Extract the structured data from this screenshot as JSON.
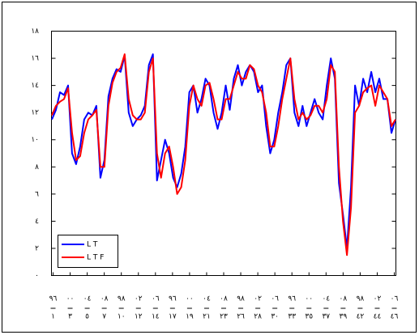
{
  "chart_data": {
    "type": "line",
    "series": [
      {
        "name": "L T",
        "color": "#0000ff",
        "values": [
          11.5,
          12.2,
          13.5,
          13.3,
          14.0,
          9.0,
          8.2,
          9.5,
          11.5,
          12.0,
          11.8,
          12.5,
          7.2,
          8.5,
          13.2,
          14.5,
          15.2,
          15.0,
          16.2,
          12.0,
          11.0,
          11.5,
          11.8,
          12.5,
          15.5,
          16.3,
          7.0,
          8.5,
          10.0,
          9.0,
          7.2,
          6.5,
          7.5,
          9.5,
          13.5,
          14.0,
          12.0,
          13.0,
          14.5,
          14.0,
          12.0,
          10.8,
          12.0,
          14.0,
          12.2,
          14.5,
          15.5,
          14.0,
          15.0,
          15.5,
          15.0,
          13.5,
          14.0,
          11.0,
          9.0,
          10.0,
          12.0,
          13.5,
          15.5,
          16.0,
          12.0,
          11.0,
          12.5,
          11.0,
          12.0,
          13.0,
          12.0,
          11.5,
          14.0,
          16.0,
          14.5,
          6.8,
          4.5,
          2.0,
          6.5,
          14.0,
          12.5,
          14.5,
          13.5,
          15.0,
          13.5,
          14.5,
          13.0,
          13.0,
          10.5,
          11.5
        ]
      },
      {
        "name": "L T F",
        "color": "#ff0000",
        "values": [
          11.8,
          12.5,
          12.8,
          13.0,
          13.8,
          10.5,
          8.5,
          8.8,
          10.5,
          11.5,
          11.8,
          12.2,
          8.0,
          8.0,
          12.5,
          14.2,
          15.0,
          15.3,
          16.3,
          13.0,
          11.8,
          11.5,
          11.5,
          12.0,
          15.0,
          16.0,
          9.0,
          7.2,
          9.0,
          9.5,
          8.0,
          6.0,
          6.5,
          8.5,
          12.5,
          14.0,
          13.0,
          12.5,
          14.0,
          14.2,
          13.0,
          11.5,
          11.5,
          13.0,
          13.0,
          14.0,
          15.0,
          14.5,
          14.5,
          15.5,
          15.2,
          14.0,
          13.5,
          12.0,
          9.5,
          9.5,
          11.0,
          13.0,
          14.5,
          16.0,
          13.0,
          11.5,
          12.0,
          11.5,
          11.8,
          12.5,
          12.5,
          12.0,
          13.0,
          15.5,
          15.0,
          8.0,
          4.0,
          1.5,
          5.0,
          12.0,
          12.5,
          13.5,
          13.8,
          14.0,
          12.5,
          14.0,
          13.5,
          13.0,
          11.0,
          11.5
        ]
      }
    ],
    "ylim": [
      0,
      18
    ],
    "yticks": [
      {
        "value": 0,
        "label": "٠"
      },
      {
        "value": 2,
        "label": "٢"
      },
      {
        "value": 4,
        "label": "٤"
      },
      {
        "value": 6,
        "label": "٦"
      },
      {
        "value": 8,
        "label": "٨"
      },
      {
        "value": 10,
        "label": "١٠"
      },
      {
        "value": 12,
        "label": "١٢"
      },
      {
        "value": 14,
        "label": "١٤"
      },
      {
        "value": 16,
        "label": "١٦"
      },
      {
        "value": 18,
        "label": "١٨"
      }
    ],
    "x_tick_labels_top": [
      "٩٦",
      "٠٠",
      "٠٤",
      "٠٨",
      "٩٨",
      "٠٢",
      "٠٦",
      "٩٦",
      "٠٠",
      "٠٤",
      "٠٨",
      "٩٨",
      "٠٢",
      "٠٦",
      "٩٦",
      "٠٠",
      "٠٤",
      "٠٨",
      "٩٨",
      "٠٢",
      "٠٦"
    ],
    "x_tick_labels_bottom": [
      "١",
      "٣",
      "٥",
      "٧",
      "١٠",
      "١٢",
      "١٤",
      "١٧",
      "١٩",
      "٢١",
      "٢٣",
      "٢٦",
      "٢٨",
      "٣٠",
      "٣٣",
      "٣٥",
      "٣٧",
      "٣٩",
      "٤٢",
      "٤٤",
      "٤٦"
    ],
    "legend": "lower left"
  }
}
